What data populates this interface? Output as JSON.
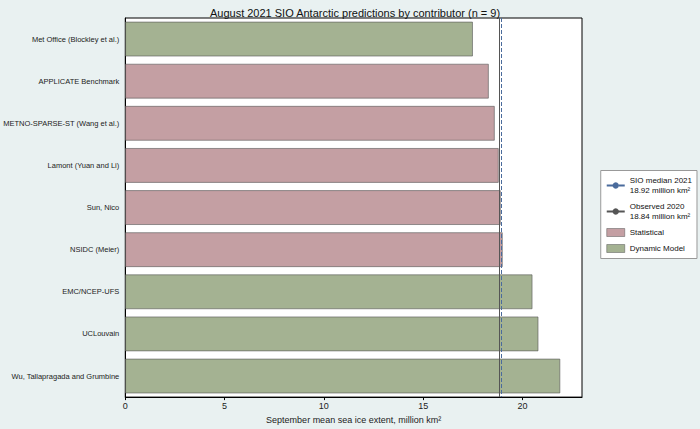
{
  "chart_data": {
    "type": "bar",
    "orientation": "horizontal",
    "title": "August 2021 SIO Antarctic predictions by contributor (n = 9)",
    "x_label": "September mean sea ice extent, million km²",
    "categories": [
      "Met Office (Blockley et al.)",
      "APPLICATE Benchmark",
      "METNO-SPARSE-ST (Wang et al.)",
      "Lamont (Yuan and Li)",
      "Sun, Nico",
      "NSIDC (Meier)",
      "EMC/NCEP-UFS",
      "UCLouvain",
      "Wu, Tallapragada and Grumbine"
    ],
    "values": [
      17.5,
      18.3,
      18.6,
      18.8,
      18.9,
      19.0,
      20.5,
      20.8,
      21.9
    ],
    "colors": [
      "#a4b292",
      "#c49fa3",
      "#c49fa3",
      "#c49fa3",
      "#c49fa3",
      "#c49fa3",
      "#a4b292",
      "#a4b292",
      "#a4b292"
    ],
    "groups": [
      {
        "name": "Statistical",
        "color": "#c49fa3"
      },
      {
        "name": "Dynamic Model",
        "color": "#a4b292"
      }
    ],
    "reference_lines": [
      {
        "name": "SIO median 2021",
        "label": "18.92 million km²",
        "value": 18.92,
        "color": "#4a6b9c",
        "line_style": "dashed"
      },
      {
        "name": "Observed 2020",
        "label": "18.84 million km²",
        "value": 18.84,
        "color": "#555555",
        "line_style": "solid"
      }
    ],
    "xlim": [
      0,
      23
    ],
    "xticks": [
      0,
      5,
      10,
      15,
      20
    ],
    "grid": false,
    "legend": "right"
  }
}
